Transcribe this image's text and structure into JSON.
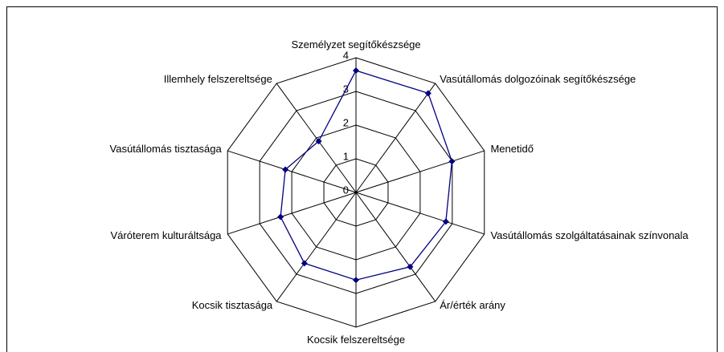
{
  "chart_data": {
    "type": "radar",
    "categories": [
      "Személyzet segítőkészsége",
      "Vasútállomás dolgozóinak segítőkészsége",
      "Menetidő",
      "Vasútállomás szolgáltatásainak színvonala",
      "Ár/érték arány",
      "Kocsik felszereltsége",
      "Kocsik tisztasága",
      "Váróterem kulturáltsága",
      "Vasútállomás tisztasága",
      "Illemhely felszereltsége"
    ],
    "values": [
      3.62,
      3.64,
      2.99,
      2.8,
      2.73,
      2.6,
      2.6,
      2.35,
      2.2,
      1.88
    ],
    "color": "#000080",
    "ylim": [
      0,
      4
    ],
    "yticks": [
      0,
      1,
      2,
      3,
      4
    ],
    "grid": true
  }
}
